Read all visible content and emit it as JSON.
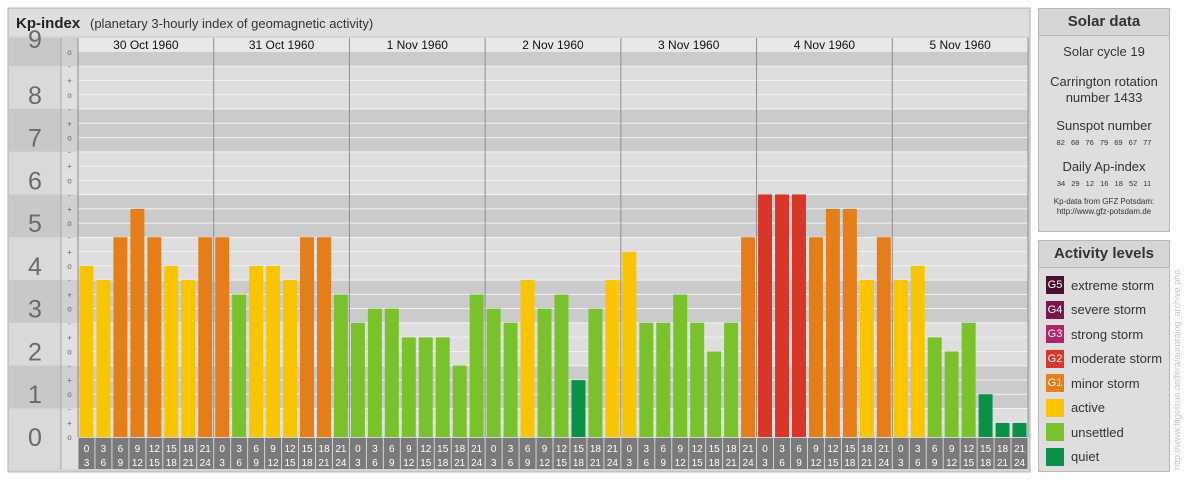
{
  "chart_title": "Kp-index",
  "chart_subtitle": "(planetary 3-hourly index of geomagnetic activity)",
  "chart_data": {
    "type": "bar",
    "title": "Kp-index",
    "subtitle": "(planetary 3-hourly index of geomagnetic activity)",
    "days": [
      "30 Oct 1960",
      "31 Oct 1960",
      "1 Nov 1960",
      "2 Nov 1960",
      "3 Nov 1960",
      "4 Nov 1960",
      "5 Nov 1960"
    ],
    "hour_starts": [
      "0",
      "3",
      "6",
      "9",
      "12",
      "15",
      "18",
      "21"
    ],
    "hour_ends": [
      "3",
      "6",
      "9",
      "12",
      "15",
      "18",
      "21",
      "24"
    ],
    "y_labels": [
      "0",
      "1",
      "2",
      "3",
      "4",
      "5",
      "6",
      "7",
      "8",
      "9"
    ],
    "sublevel_marks": [
      "o",
      "+",
      "-"
    ],
    "ylim": [
      0,
      9.33
    ],
    "values": [
      4.0,
      3.67,
      4.67,
      5.33,
      4.67,
      4.0,
      3.67,
      4.67,
      4.67,
      3.33,
      4.0,
      4.0,
      3.67,
      4.67,
      4.67,
      3.33,
      2.67,
      3.0,
      3.0,
      2.33,
      2.33,
      2.33,
      1.67,
      3.33,
      3.0,
      2.67,
      3.67,
      3.0,
      3.33,
      1.33,
      3.0,
      3.67,
      4.33,
      2.67,
      2.67,
      3.33,
      2.67,
      2.0,
      2.67,
      4.67,
      5.67,
      5.67,
      5.67,
      4.67,
      5.33,
      5.33,
      3.67,
      4.67,
      3.67,
      4.0,
      2.33,
      2.0,
      2.67,
      1.0,
      0.33,
      0.33
    ],
    "colors": {
      "quiet": "#0a9148",
      "unsettled": "#79c22c",
      "active": "#f8c500",
      "minor_storm": "#e57e19",
      "moderate_storm": "#d9362a"
    }
  },
  "solar": {
    "title": "Solar data",
    "cycle": "Solar cycle 19",
    "carrington": "Carrington rotation number 1433",
    "sunspot_title": "Sunspot number",
    "sunspot_values": "82 68 76 79 69 67 77",
    "ap_title": "Daily Ap-index",
    "ap_values": "34 29 12 16 18 52 11",
    "credit_line1": "Kp-data from GFZ Potsdam:",
    "credit_line2": "http://www.gfz-potsdam.de"
  },
  "activity": {
    "title": "Activity levels",
    "levels": [
      {
        "code": "G5",
        "label": "extreme storm",
        "color": "#4a1030"
      },
      {
        "code": "G4",
        "label": "severe storm",
        "color": "#7a1550"
      },
      {
        "code": "G3",
        "label": "strong storm",
        "color": "#b0246a"
      },
      {
        "code": "G2",
        "label": "moderate storm",
        "color": "#d9362a"
      },
      {
        "code": "G1",
        "label": "minor storm",
        "color": "#e57e19"
      },
      {
        "code": "",
        "label": "active",
        "color": "#f8c500"
      },
      {
        "code": "",
        "label": "unsettled",
        "color": "#79c22c"
      },
      {
        "code": "",
        "label": "quiet",
        "color": "#0a9148"
      }
    ]
  },
  "watermark": "http://www.fitgelsue.de/fera/auroralog_archive.php"
}
